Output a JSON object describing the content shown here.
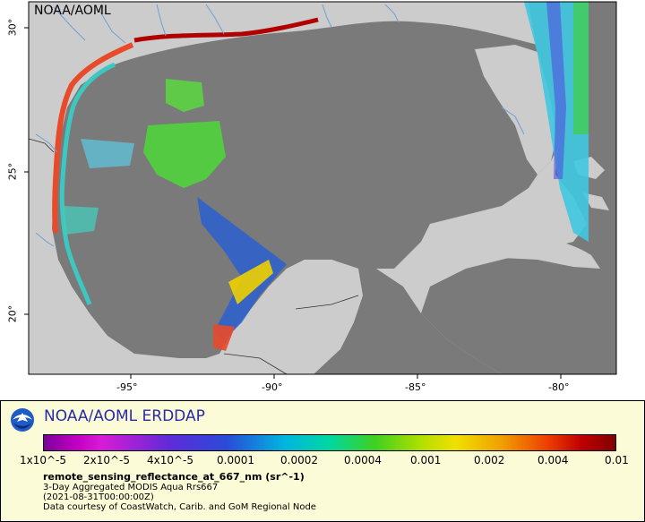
{
  "map": {
    "watermark": "NOAA/AOML",
    "x_ticks": [
      "-95°",
      "-90°",
      "-85°",
      "-80°"
    ],
    "y_ticks": [
      "30°",
      "25°",
      "20°"
    ],
    "colors": {
      "land": "#cccccc",
      "ocean": "#7a7a7a",
      "rivers": "#6fa0d0",
      "borders": "#333333"
    }
  },
  "legend": {
    "title": "NOAA/AOML ERDDAP",
    "logo_icon": "noaa-logo-icon",
    "colorbar_ticks": [
      "1x10^-5",
      "2x10^-5",
      "4x10^-5",
      "0.0001",
      "0.0002",
      "0.0004",
      "0.001",
      "0.002",
      "0.004",
      "0.01"
    ],
    "variable": "remote_sensing_reflectance_at_667_nm (sr^-1)",
    "description": [
      "3-Day Aggregated MODIS Aqua Rrs667",
      "(2021-08-31T00:00:00Z)",
      "Data courtesy of CoastWatch, Carib. and GoM Regional Node"
    ]
  }
}
